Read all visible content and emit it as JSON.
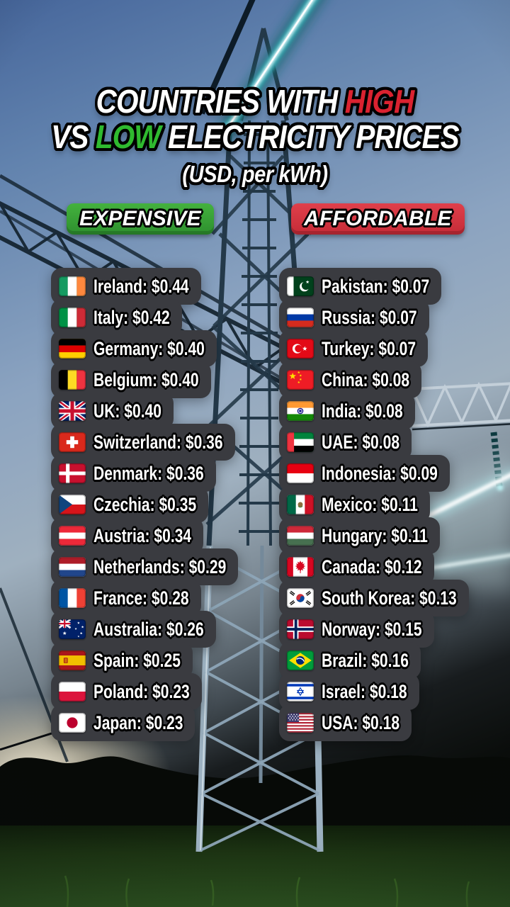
{
  "title": {
    "line1_text": "COUNTRIES WITH ",
    "line1_highlight": "HIGH",
    "line2_pre": "VS ",
    "line2_highlight": "LOW",
    "line2_post": " ELECTRICITY PRICES",
    "subtitle": "(USD, per kWh)"
  },
  "badges": {
    "expensive": "EXPENSIVE",
    "affordable": "AFFORDABLE"
  },
  "colors": {
    "highlight_red": "#da2230",
    "highlight_green": "#2fba2f",
    "expensive_badge_top": "#44b23e",
    "expensive_badge_bottom": "#2d8f2e",
    "affordable_badge_top": "#e0404b",
    "affordable_badge_bottom": "#c52b37",
    "panel_background": "#3a3b40",
    "list_text": "#ffffff"
  },
  "columns": {
    "expensive": {
      "items": [
        {
          "flag": "ireland",
          "country": "Ireland",
          "price": "$0.44"
        },
        {
          "flag": "italy",
          "country": "Italy",
          "price": "$0.42"
        },
        {
          "flag": "germany",
          "country": "Germany",
          "price": "$0.40"
        },
        {
          "flag": "belgium",
          "country": "Belgium",
          "price": "$0.40"
        },
        {
          "flag": "uk",
          "country": "UK",
          "price": "$0.40"
        },
        {
          "flag": "switzerland",
          "country": "Switzerland",
          "price": "$0.36"
        },
        {
          "flag": "denmark",
          "country": "Denmark",
          "price": "$0.36"
        },
        {
          "flag": "czechia",
          "country": "Czechia",
          "price": "$0.35"
        },
        {
          "flag": "austria",
          "country": "Austria",
          "price": "$0.34"
        },
        {
          "flag": "netherlands",
          "country": "Netherlands",
          "price": "$0.29"
        },
        {
          "flag": "france",
          "country": "France",
          "price": "$0.28"
        },
        {
          "flag": "australia",
          "country": "Australia",
          "price": "$0.26"
        },
        {
          "flag": "spain",
          "country": "Spain",
          "price": "$0.25"
        },
        {
          "flag": "poland",
          "country": "Poland",
          "price": "$0.23"
        },
        {
          "flag": "japan",
          "country": "Japan",
          "price": "$0.23"
        }
      ]
    },
    "affordable": {
      "items": [
        {
          "flag": "pakistan",
          "country": "Pakistan",
          "price": "$0.07"
        },
        {
          "flag": "russia",
          "country": "Russia",
          "price": "$0.07"
        },
        {
          "flag": "turkey",
          "country": "Turkey",
          "price": "$0.07"
        },
        {
          "flag": "china",
          "country": "China",
          "price": "$0.08"
        },
        {
          "flag": "india",
          "country": "India",
          "price": "$0.08"
        },
        {
          "flag": "uae",
          "country": "UAE",
          "price": "$0.08"
        },
        {
          "flag": "indonesia",
          "country": "Indonesia",
          "price": "$0.09"
        },
        {
          "flag": "mexico",
          "country": "Mexico",
          "price": "$0.11"
        },
        {
          "flag": "hungary",
          "country": "Hungary",
          "price": "$0.11"
        },
        {
          "flag": "canada",
          "country": "Canada",
          "price": "$0.12"
        },
        {
          "flag": "south_korea",
          "country": "South Korea",
          "price": "$0.13"
        },
        {
          "flag": "norway",
          "country": "Norway",
          "price": "$0.15"
        },
        {
          "flag": "brazil",
          "country": "Brazil",
          "price": "$0.16"
        },
        {
          "flag": "israel",
          "country": "Israel",
          "price": "$0.18"
        },
        {
          "flag": "usa",
          "country": "USA",
          "price": "$0.18"
        }
      ]
    }
  },
  "chart_data": {
    "type": "table",
    "title": "Countries with High vs Low Electricity Prices",
    "unit": "USD per kWh",
    "groups": [
      {
        "label": "Expensive",
        "rows": [
          [
            "Ireland",
            0.44
          ],
          [
            "Italy",
            0.42
          ],
          [
            "Germany",
            0.4
          ],
          [
            "Belgium",
            0.4
          ],
          [
            "UK",
            0.4
          ],
          [
            "Switzerland",
            0.36
          ],
          [
            "Denmark",
            0.36
          ],
          [
            "Czechia",
            0.35
          ],
          [
            "Austria",
            0.34
          ],
          [
            "Netherlands",
            0.29
          ],
          [
            "France",
            0.28
          ],
          [
            "Australia",
            0.26
          ],
          [
            "Spain",
            0.25
          ],
          [
            "Poland",
            0.23
          ],
          [
            "Japan",
            0.23
          ]
        ]
      },
      {
        "label": "Affordable",
        "rows": [
          [
            "Pakistan",
            0.07
          ],
          [
            "Russia",
            0.07
          ],
          [
            "Turkey",
            0.07
          ],
          [
            "China",
            0.08
          ],
          [
            "India",
            0.08
          ],
          [
            "UAE",
            0.08
          ],
          [
            "Indonesia",
            0.09
          ],
          [
            "Mexico",
            0.11
          ],
          [
            "Hungary",
            0.11
          ],
          [
            "Canada",
            0.12
          ],
          [
            "South Korea",
            0.13
          ],
          [
            "Norway",
            0.15
          ],
          [
            "Brazil",
            0.16
          ],
          [
            "Israel",
            0.18
          ],
          [
            "USA",
            0.18
          ]
        ]
      }
    ]
  }
}
